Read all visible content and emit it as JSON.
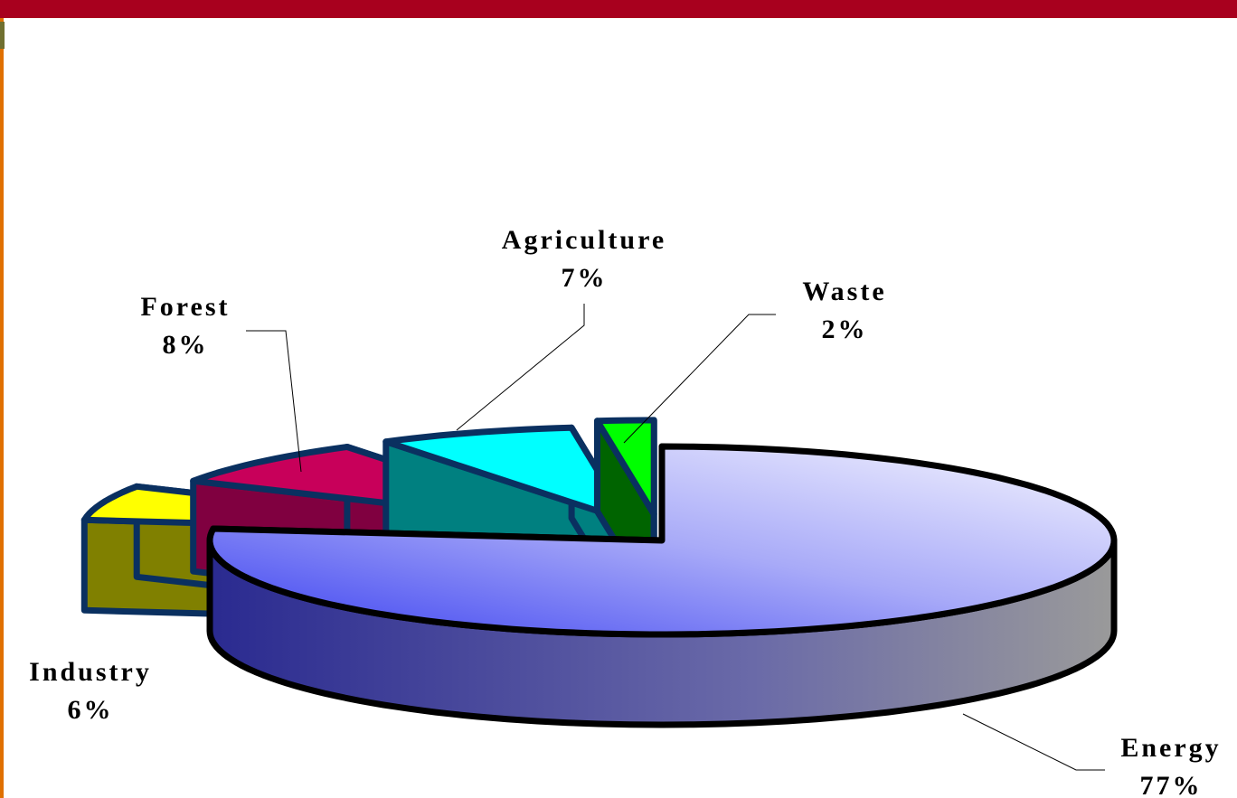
{
  "chart_data": {
    "type": "pie3d",
    "categories": [
      "Energy",
      "Industry",
      "Forest",
      "Agriculture",
      "Waste"
    ],
    "values": [
      77,
      6,
      8,
      7,
      2
    ],
    "value_labels": [
      "77%",
      "6%",
      "8%",
      "7%",
      "2%"
    ],
    "series": [
      {
        "name": "Energy",
        "color": "#5a5cf0"
      },
      {
        "name": "Industry",
        "color": "#ffff00"
      },
      {
        "name": "Forest",
        "color": "#c8005a"
      },
      {
        "name": "Agriculture",
        "color": "#00ffff"
      },
      {
        "name": "Waste",
        "color": "#00ff00"
      }
    ]
  }
}
